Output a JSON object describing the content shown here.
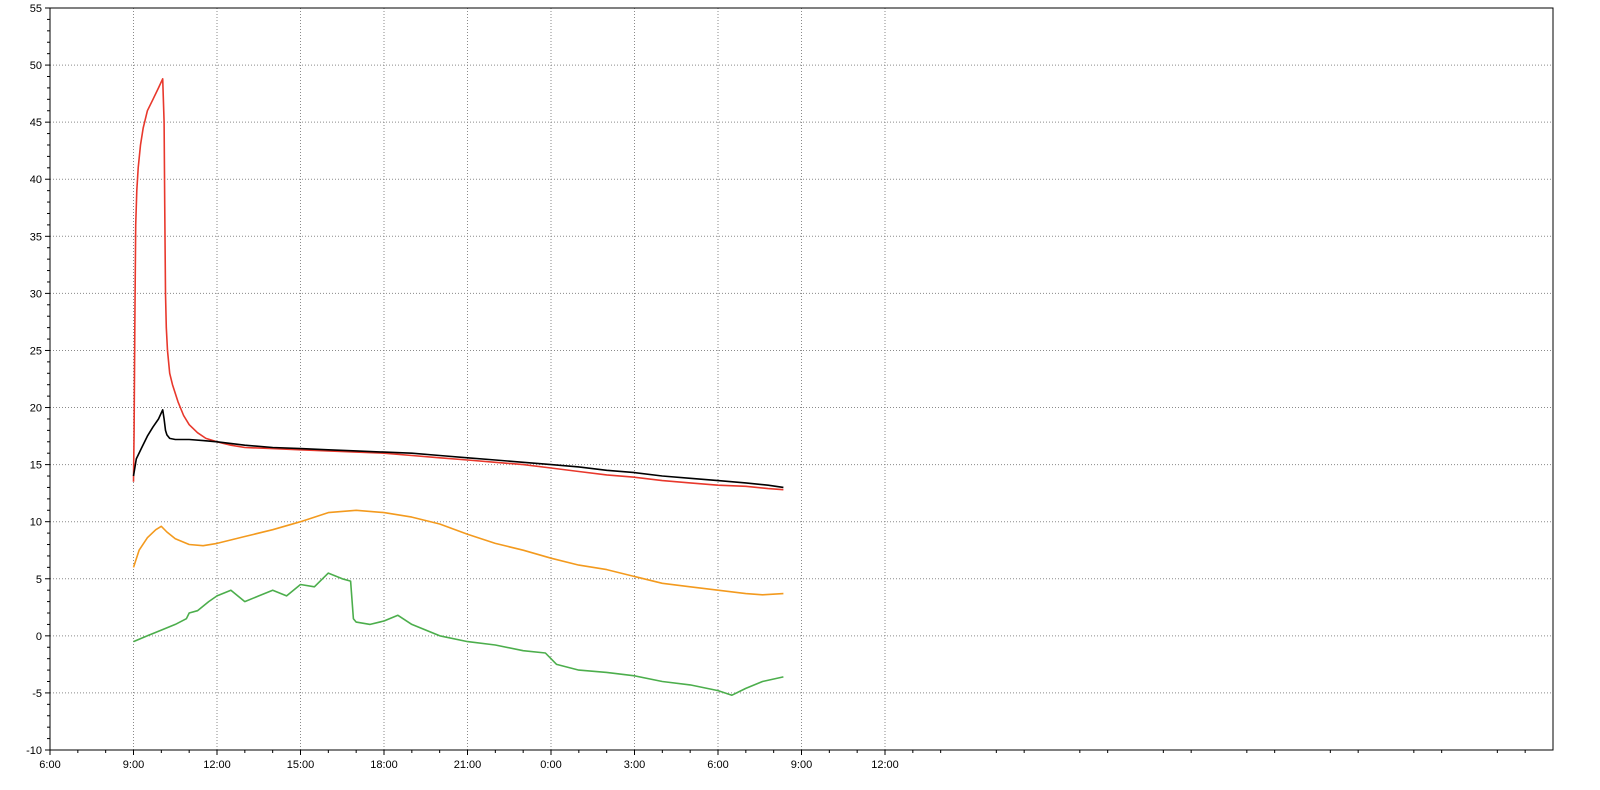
{
  "chart_data": {
    "type": "line",
    "title": "",
    "xlabel": "",
    "ylabel": "",
    "xlim": [
      0,
      54
    ],
    "ylim": [
      -10,
      55
    ],
    "x_unit": "hours elapsed since 6:00 on first day",
    "xticks": [
      {
        "x": 0,
        "label": "6:00"
      },
      {
        "x": 3,
        "label": "9:00"
      },
      {
        "x": 6,
        "label": "12:00"
      },
      {
        "x": 9,
        "label": "15:00"
      },
      {
        "x": 12,
        "label": "18:00"
      },
      {
        "x": 15,
        "label": "21:00"
      },
      {
        "x": 18,
        "label": "0:00"
      },
      {
        "x": 21,
        "label": "3:00"
      },
      {
        "x": 24,
        "label": "6:00"
      },
      {
        "x": 27,
        "label": "9:00"
      },
      {
        "x": 30,
        "label": "12:00"
      }
    ],
    "yticks": [
      -10,
      -5,
      0,
      5,
      10,
      15,
      20,
      25,
      30,
      35,
      40,
      45,
      50,
      55
    ],
    "grid": true,
    "series": [
      {
        "color": "#e8382c",
        "x": [
          3.0,
          3.02,
          3.05,
          3.08,
          3.12,
          3.17,
          3.25,
          3.35,
          3.5,
          3.7,
          3.9,
          4.05,
          4.1,
          4.12,
          4.15,
          4.18,
          4.22,
          4.3,
          4.4,
          4.6,
          4.8,
          5.0,
          5.3,
          5.6,
          6.0,
          6.5,
          7.0,
          8.0,
          9.0,
          10.0,
          11.0,
          12.0,
          13.0,
          14.0,
          15.0,
          16.0,
          17.0,
          18.0,
          19.0,
          20.0,
          21.0,
          22.0,
          23.0,
          24.0,
          25.0,
          25.8,
          26.35
        ],
        "y": [
          13.5,
          18.0,
          28.0,
          36.0,
          39.0,
          41.0,
          43.0,
          44.5,
          46.0,
          47.0,
          48.0,
          48.8,
          45.0,
          38.0,
          30.0,
          27.0,
          25.0,
          23.0,
          22.0,
          20.5,
          19.3,
          18.5,
          17.8,
          17.3,
          17.0,
          16.7,
          16.5,
          16.4,
          16.3,
          16.2,
          16.1,
          16.0,
          15.8,
          15.6,
          15.4,
          15.2,
          15.0,
          14.7,
          14.4,
          14.1,
          13.9,
          13.6,
          13.4,
          13.2,
          13.1,
          12.9,
          12.8
        ]
      },
      {
        "color": "#000000",
        "x": [
          3.0,
          3.1,
          3.3,
          3.5,
          3.7,
          3.9,
          4.05,
          4.1,
          4.15,
          4.2,
          4.3,
          4.5,
          5.0,
          5.5,
          6.0,
          7.0,
          8.0,
          9.0,
          10.0,
          11.0,
          12.0,
          13.0,
          14.0,
          15.0,
          16.0,
          17.0,
          18.0,
          19.0,
          20.0,
          21.0,
          22.0,
          23.0,
          24.0,
          25.0,
          25.8,
          26.35
        ],
        "y": [
          14.0,
          15.5,
          16.5,
          17.5,
          18.3,
          19.0,
          19.8,
          19.0,
          18.0,
          17.6,
          17.3,
          17.2,
          17.2,
          17.1,
          17.0,
          16.7,
          16.5,
          16.4,
          16.3,
          16.2,
          16.1,
          16.0,
          15.8,
          15.6,
          15.4,
          15.2,
          15.0,
          14.8,
          14.5,
          14.3,
          14.0,
          13.8,
          13.6,
          13.4,
          13.2,
          13.0
        ]
      },
      {
        "color": "#f39a1e",
        "x": [
          3.0,
          3.2,
          3.5,
          3.8,
          4.0,
          4.2,
          4.5,
          5.0,
          5.5,
          6.0,
          7.0,
          8.0,
          9.0,
          10.0,
          11.0,
          12.0,
          13.0,
          14.0,
          15.0,
          16.0,
          17.0,
          18.0,
          19.0,
          20.0,
          21.0,
          22.0,
          23.0,
          24.0,
          25.0,
          25.6,
          26.35
        ],
        "y": [
          6.0,
          7.5,
          8.6,
          9.3,
          9.6,
          9.1,
          8.5,
          8.0,
          7.9,
          8.1,
          8.7,
          9.3,
          10.0,
          10.8,
          11.0,
          10.8,
          10.4,
          9.8,
          8.9,
          8.1,
          7.5,
          6.8,
          6.2,
          5.8,
          5.2,
          4.6,
          4.3,
          4.0,
          3.7,
          3.6,
          3.7
        ]
      },
      {
        "color": "#4cae4c",
        "x": [
          3.0,
          3.5,
          4.0,
          4.5,
          4.9,
          5.0,
          5.3,
          5.7,
          6.0,
          6.5,
          7.0,
          7.5,
          8.0,
          8.5,
          9.0,
          9.5,
          10.0,
          10.5,
          10.8,
          10.9,
          11.0,
          11.5,
          12.0,
          12.5,
          13.0,
          14.0,
          15.0,
          16.0,
          17.0,
          17.8,
          18.0,
          18.2,
          19.0,
          20.0,
          21.0,
          22.0,
          23.0,
          24.0,
          24.5,
          25.0,
          25.6,
          26.35
        ],
        "y": [
          -0.5,
          0.0,
          0.5,
          1.0,
          1.5,
          2.0,
          2.2,
          3.0,
          3.5,
          4.0,
          3.0,
          3.5,
          4.0,
          3.5,
          4.5,
          4.3,
          5.5,
          5.0,
          4.8,
          1.5,
          1.2,
          1.0,
          1.3,
          1.8,
          1.0,
          0.0,
          -0.5,
          -0.8,
          -1.3,
          -1.5,
          -2.0,
          -2.5,
          -3.0,
          -3.2,
          -3.5,
          -4.0,
          -4.3,
          -4.8,
          -5.2,
          -4.6,
          -4.0,
          -3.6
        ]
      }
    ]
  }
}
